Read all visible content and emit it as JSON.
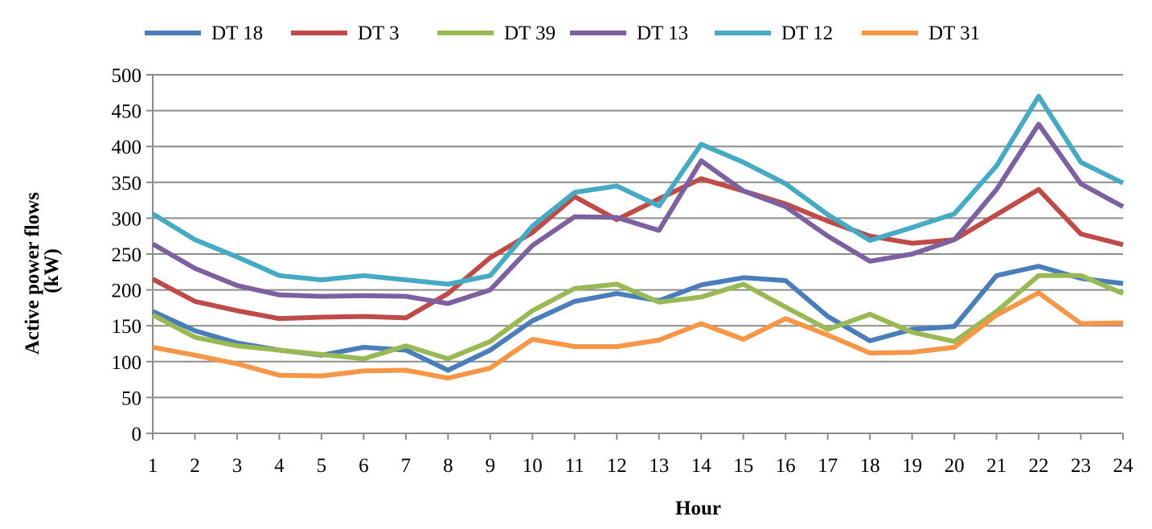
{
  "chart_data": {
    "type": "line",
    "title": "",
    "xlabel": "Hour",
    "ylabel": "Active power flows (kW)",
    "ylabel_lines": [
      "Active power flows",
      "(kW)"
    ],
    "ylim": [
      0,
      500
    ],
    "ytick_step": 50,
    "grid": "horizontal",
    "legend_position": "top",
    "x": [
      1,
      2,
      3,
      4,
      5,
      6,
      7,
      8,
      9,
      10,
      11,
      12,
      13,
      14,
      15,
      16,
      17,
      18,
      19,
      20,
      21,
      22,
      23,
      24
    ],
    "series": [
      {
        "name": "DT 18",
        "color": "#4a7ebb",
        "values": [
          170,
          143,
          126,
          116,
          109,
          120,
          116,
          88,
          116,
          157,
          184,
          195,
          185,
          207,
          217,
          213,
          163,
          129,
          145,
          149,
          220,
          233,
          216,
          209
        ]
      },
      {
        "name": "DT 3",
        "color": "#be4b48",
        "values": [
          215,
          184,
          171,
          160,
          162,
          163,
          161,
          195,
          245,
          280,
          330,
          298,
          327,
          355,
          338,
          320,
          296,
          275,
          265,
          270,
          305,
          340,
          278,
          263
        ]
      },
      {
        "name": "DT 39",
        "color": "#98b954",
        "values": [
          165,
          134,
          122,
          116,
          110,
          104,
          122,
          104,
          128,
          171,
          202,
          208,
          183,
          190,
          208,
          176,
          145,
          166,
          141,
          128,
          170,
          220,
          220,
          195
        ]
      },
      {
        "name": "DT 13",
        "color": "#7d60a0",
        "values": [
          264,
          230,
          206,
          193,
          191,
          192,
          191,
          181,
          200,
          262,
          302,
          301,
          283,
          380,
          338,
          316,
          275,
          240,
          250,
          270,
          340,
          431,
          348,
          316
        ]
      },
      {
        "name": "DT 12",
        "color": "#46aac5",
        "values": [
          306,
          270,
          246,
          220,
          214,
          220,
          214,
          208,
          220,
          289,
          336,
          345,
          317,
          403,
          378,
          348,
          305,
          269,
          287,
          306,
          373,
          470,
          378,
          349
        ]
      },
      {
        "name": "DT 31",
        "color": "#f79646",
        "values": [
          120,
          109,
          97,
          81,
          80,
          87,
          88,
          77,
          91,
          131,
          121,
          121,
          130,
          153,
          131,
          160,
          137,
          112,
          113,
          120,
          165,
          196,
          153,
          154
        ]
      }
    ]
  }
}
